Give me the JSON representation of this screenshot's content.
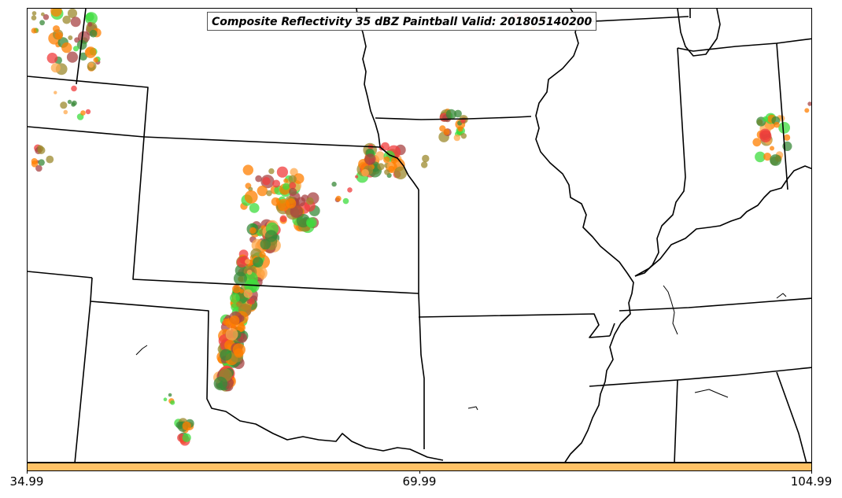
{
  "title": "Composite Reflectivity 35 dBZ Paintball Valid: 201805140200",
  "colorbar": {
    "color": "#FFC266",
    "ticks": [
      "34.99",
      "69.99",
      "104.99"
    ]
  },
  "palette": {
    "orange": "#FF7F00",
    "light_orange": "#FFA94D",
    "red": "#F03C3C",
    "dark_red": "#A84444",
    "green": "#3DDC3D",
    "dark_green": "#3A8A3A",
    "olive": "#9C8A2E",
    "boundaries": "#000000"
  },
  "map_layers": [
    "state-boundaries",
    "coastlines",
    "lakes",
    "rivers"
  ]
}
